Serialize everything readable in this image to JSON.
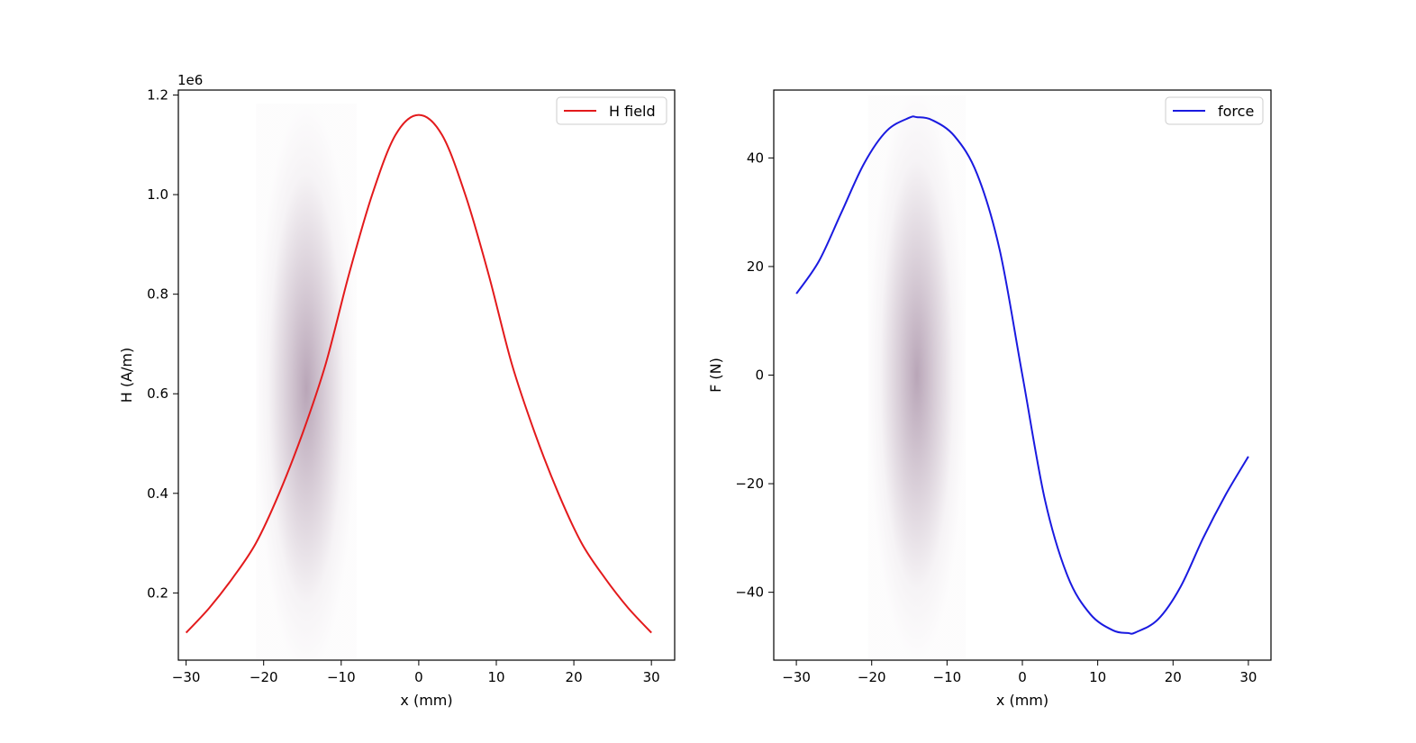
{
  "chart_data": [
    {
      "type": "line",
      "id": "h-field-panel",
      "title": "",
      "xlabel": "x (mm)",
      "ylabel": "H (A/m)",
      "y_offset_text": "1e6",
      "xlim": [
        -31,
        33
      ],
      "ylim": [
        0.065,
        1.21
      ],
      "xticks": [
        -30,
        -20,
        -10,
        0,
        10,
        20,
        30
      ],
      "xtick_labels": [
        "−30",
        "−20",
        "−10",
        "0",
        "10",
        "20",
        "30"
      ],
      "yticks": [
        0.2,
        0.4,
        0.6,
        0.8,
        1.0,
        1.2
      ],
      "ytick_labels": [
        "0.2",
        "0.4",
        "0.6",
        "0.8",
        "1.0",
        "1.2"
      ],
      "grid": false,
      "legend_position": "top-right",
      "series": [
        {
          "name": "H field",
          "color": "#e31a1c",
          "x": [
            -30,
            -27,
            -24,
            -21,
            -18,
            -15,
            -12,
            -9,
            -6,
            -3,
            0,
            3,
            6,
            9,
            12,
            15,
            18,
            21,
            24,
            27,
            30
          ],
          "y": [
            0.12,
            0.17,
            0.23,
            0.3,
            0.4,
            0.52,
            0.66,
            0.84,
            1.0,
            1.12,
            1.16,
            1.12,
            1.0,
            0.84,
            0.66,
            0.52,
            0.4,
            0.3,
            0.23,
            0.17,
            0.12
          ]
        }
      ],
      "highlight_band": {
        "x_range": [
          -21,
          -8
        ],
        "center_y": 0.61,
        "color": "#8a6a88"
      }
    },
    {
      "type": "line",
      "id": "force-panel",
      "title": "",
      "xlabel": "x (mm)",
      "ylabel": "F (N)",
      "xlim": [
        -33,
        33
      ],
      "ylim": [
        -52.5,
        52.5
      ],
      "xticks": [
        -30,
        -20,
        -10,
        0,
        10,
        20,
        30
      ],
      "xtick_labels": [
        "−30",
        "−20",
        "−10",
        "0",
        "10",
        "20",
        "30"
      ],
      "yticks": [
        -40,
        -20,
        0,
        20,
        40
      ],
      "ytick_labels": [
        "−40",
        "−20",
        "0",
        "20",
        "40"
      ],
      "grid": false,
      "legend_position": "top-right",
      "series": [
        {
          "name": "force",
          "color": "#1a1ae0",
          "x": [
            -30,
            -27,
            -24,
            -21,
            -18,
            -15,
            -14,
            -12,
            -9,
            -6,
            -3,
            0,
            3,
            6,
            9,
            12,
            14,
            15,
            18,
            21,
            24,
            27,
            30
          ],
          "y": [
            15,
            21,
            30,
            39,
            45,
            47.4,
            47.5,
            47,
            44,
            37,
            23,
            0,
            -23,
            -37,
            -44,
            -47,
            -47.5,
            -47.4,
            -45,
            -39,
            -30,
            -22,
            -15
          ]
        }
      ],
      "highlight_band": {
        "x_range": [
          -20.5,
          -7.5
        ],
        "center_y": 0,
        "color": "#8a6a88"
      }
    }
  ]
}
